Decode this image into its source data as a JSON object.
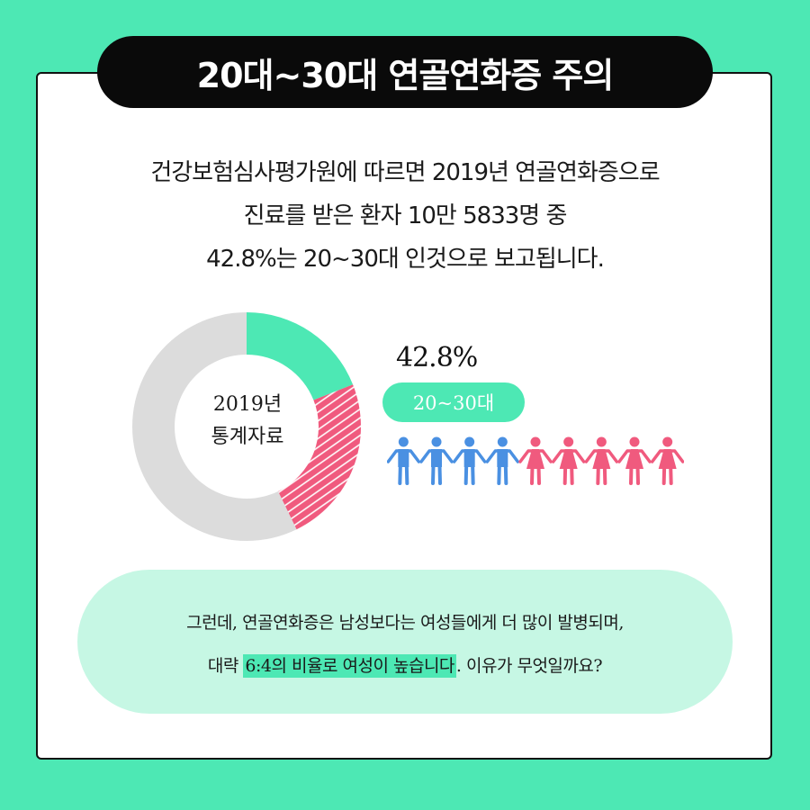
{
  "title": "20대~30대 연골연화증 주의",
  "intro": {
    "line1": "건강보험심사평가원에 따르면 2019년 연골연화증으로",
    "line2": "진료를 받은 환자 10만 5833명 중",
    "line3": "42.8%는 20~30대 인것으로 보고됩니다."
  },
  "chart": {
    "center_line1": "2019년",
    "center_line2": "통계자료",
    "percent_label": "42.8%",
    "age_label": "20~30대"
  },
  "chart_data": {
    "type": "pie",
    "categories": [
      "",
      "",
      ""
    ],
    "values": [
      19,
      23.8,
      57.2
    ],
    "colors": [
      "#4de8b4",
      "#f05a7e",
      "#dcdcdc"
    ],
    "donut": true
  },
  "people": {
    "male_count": 4,
    "female_count": 5,
    "male_color": "#4a90e2",
    "female_color": "#f05a7e"
  },
  "bottom": {
    "line1": "그런데, 연골연화증은 남성보다는 여성들에게 더 많이 발병되며,",
    "line2_prefix": "대략 ",
    "line2_highlight": "6:4의 비율로 여성이 높습니다",
    "line2_suffix": ". 이유가 무엇일까요?"
  },
  "colors": {
    "background": "#4de8b4",
    "accent": "#4de8b4",
    "pink": "#f05a7e",
    "grey": "#dcdcdc",
    "title_bg": "#0a0a0a"
  }
}
